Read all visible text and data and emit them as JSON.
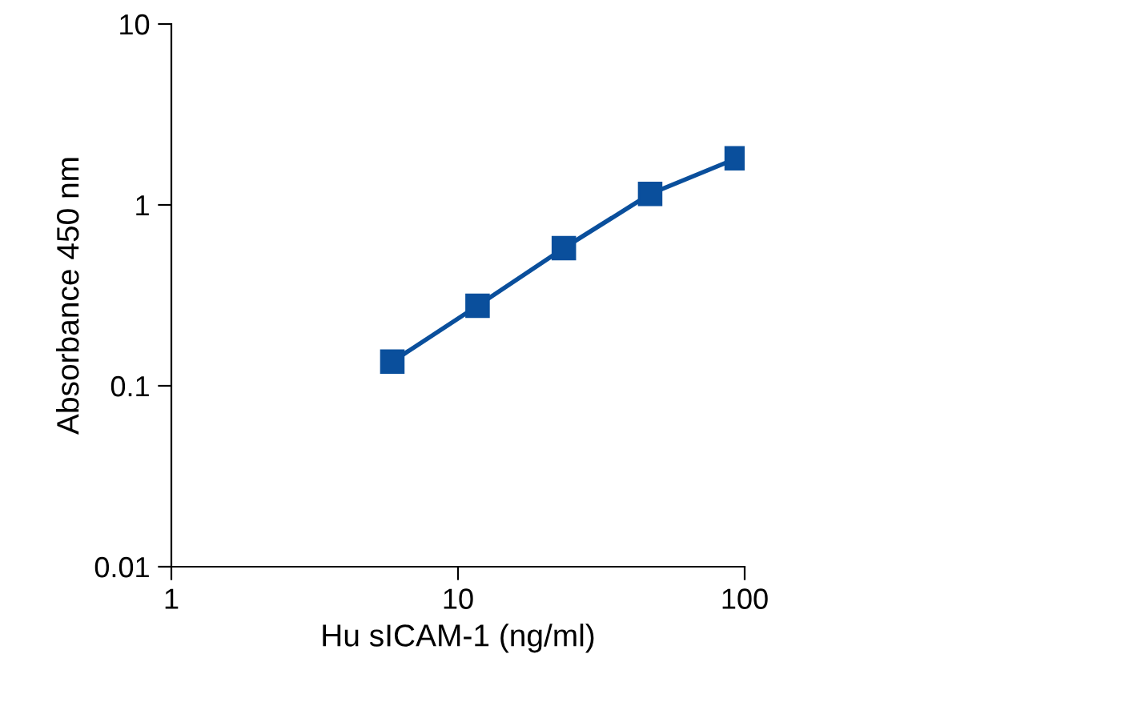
{
  "chart_data": {
    "type": "line",
    "xlabel": "Hu sICAM-1 (ng/ml)",
    "ylabel": "Absorbance 450 nm",
    "log": "xy",
    "xlim": [
      1,
      100
    ],
    "xticks": [
      1,
      10,
      100
    ],
    "ylim": [
      0.01,
      10
    ],
    "yticks": [
      0.01,
      0.1,
      1,
      10
    ],
    "grid": false,
    "marker": "square",
    "line_style": "solid",
    "series": [
      {
        "color": "#0a4f9c",
        "x": [
          5.9,
          11.7,
          23.4,
          46.8,
          93.8
        ],
        "values": [
          0.136,
          0.277,
          0.577,
          1.15,
          1.81
        ]
      }
    ]
  }
}
